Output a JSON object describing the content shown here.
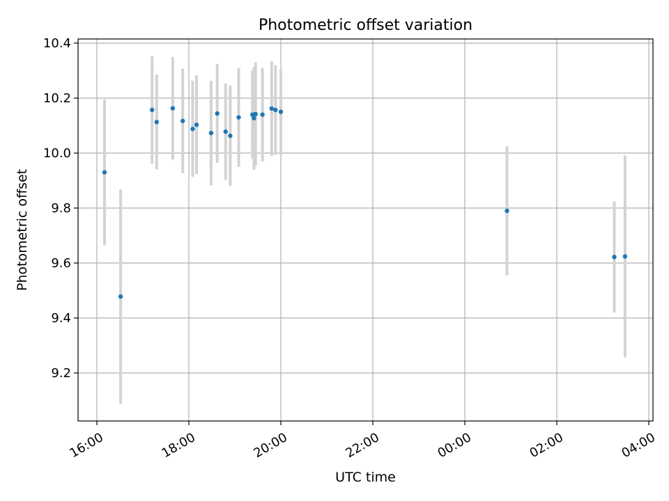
{
  "chart_data": {
    "type": "scatter",
    "title": "Photometric offset variation",
    "xlabel": "UTC time",
    "ylabel": "Photometric offset",
    "x_tick_labels": [
      "16:00",
      "18:00",
      "20:00",
      "22:00",
      "00:00",
      "02:00",
      "04:00"
    ],
    "y_tick_labels": [
      "9.2",
      "9.4",
      "9.6",
      "9.8",
      "10.0",
      "10.2",
      "10.4"
    ],
    "y_ticks": [
      9.2,
      9.4,
      9.6,
      9.8,
      10.0,
      10.2,
      10.4
    ],
    "grid": true,
    "colors": {
      "marker": "#1f77b4",
      "errorbar": "#d3d3d3",
      "grid": "#b0b0b0"
    },
    "points": [
      {
        "time": "16:10",
        "y": 9.93,
        "yerr": 0.265
      },
      {
        "time": "16:31",
        "y": 9.478,
        "yerr": 0.39
      },
      {
        "time": "17:12",
        "y": 10.157,
        "yerr": 0.195
      },
      {
        "time": "17:18",
        "y": 10.113,
        "yerr": 0.172
      },
      {
        "time": "17:39",
        "y": 10.163,
        "yerr": 0.187
      },
      {
        "time": "17:52",
        "y": 10.117,
        "yerr": 0.19
      },
      {
        "time": "18:05",
        "y": 10.088,
        "yerr": 0.175
      },
      {
        "time": "18:10",
        "y": 10.103,
        "yerr": 0.18
      },
      {
        "time": "18:29",
        "y": 10.073,
        "yerr": 0.19
      },
      {
        "time": "18:37",
        "y": 10.144,
        "yerr": 0.18
      },
      {
        "time": "18:48",
        "y": 10.078,
        "yerr": 0.175
      },
      {
        "time": "18:54",
        "y": 10.063,
        "yerr": 0.183
      },
      {
        "time": "19:05",
        "y": 10.13,
        "yerr": 0.18
      },
      {
        "time": "19:23",
        "y": 10.14,
        "yerr": 0.16
      },
      {
        "time": "19:25",
        "y": 10.127,
        "yerr": 0.187
      },
      {
        "time": "19:27",
        "y": 10.142,
        "yerr": 0.188
      },
      {
        "time": "19:36",
        "y": 10.14,
        "yerr": 0.17
      },
      {
        "time": "19:48",
        "y": 10.162,
        "yerr": 0.172
      },
      {
        "time": "19:53",
        "y": 10.157,
        "yerr": 0.163
      },
      {
        "time": "20:00",
        "y": 10.15,
        "yerr": 0.155
      },
      {
        "time": "00:55",
        "y": 9.79,
        "yerr": 0.235
      },
      {
        "time": "03:15",
        "y": 9.622,
        "yerr": 0.202
      },
      {
        "time": "03:29",
        "y": 9.624,
        "yerr": 0.367
      }
    ]
  }
}
